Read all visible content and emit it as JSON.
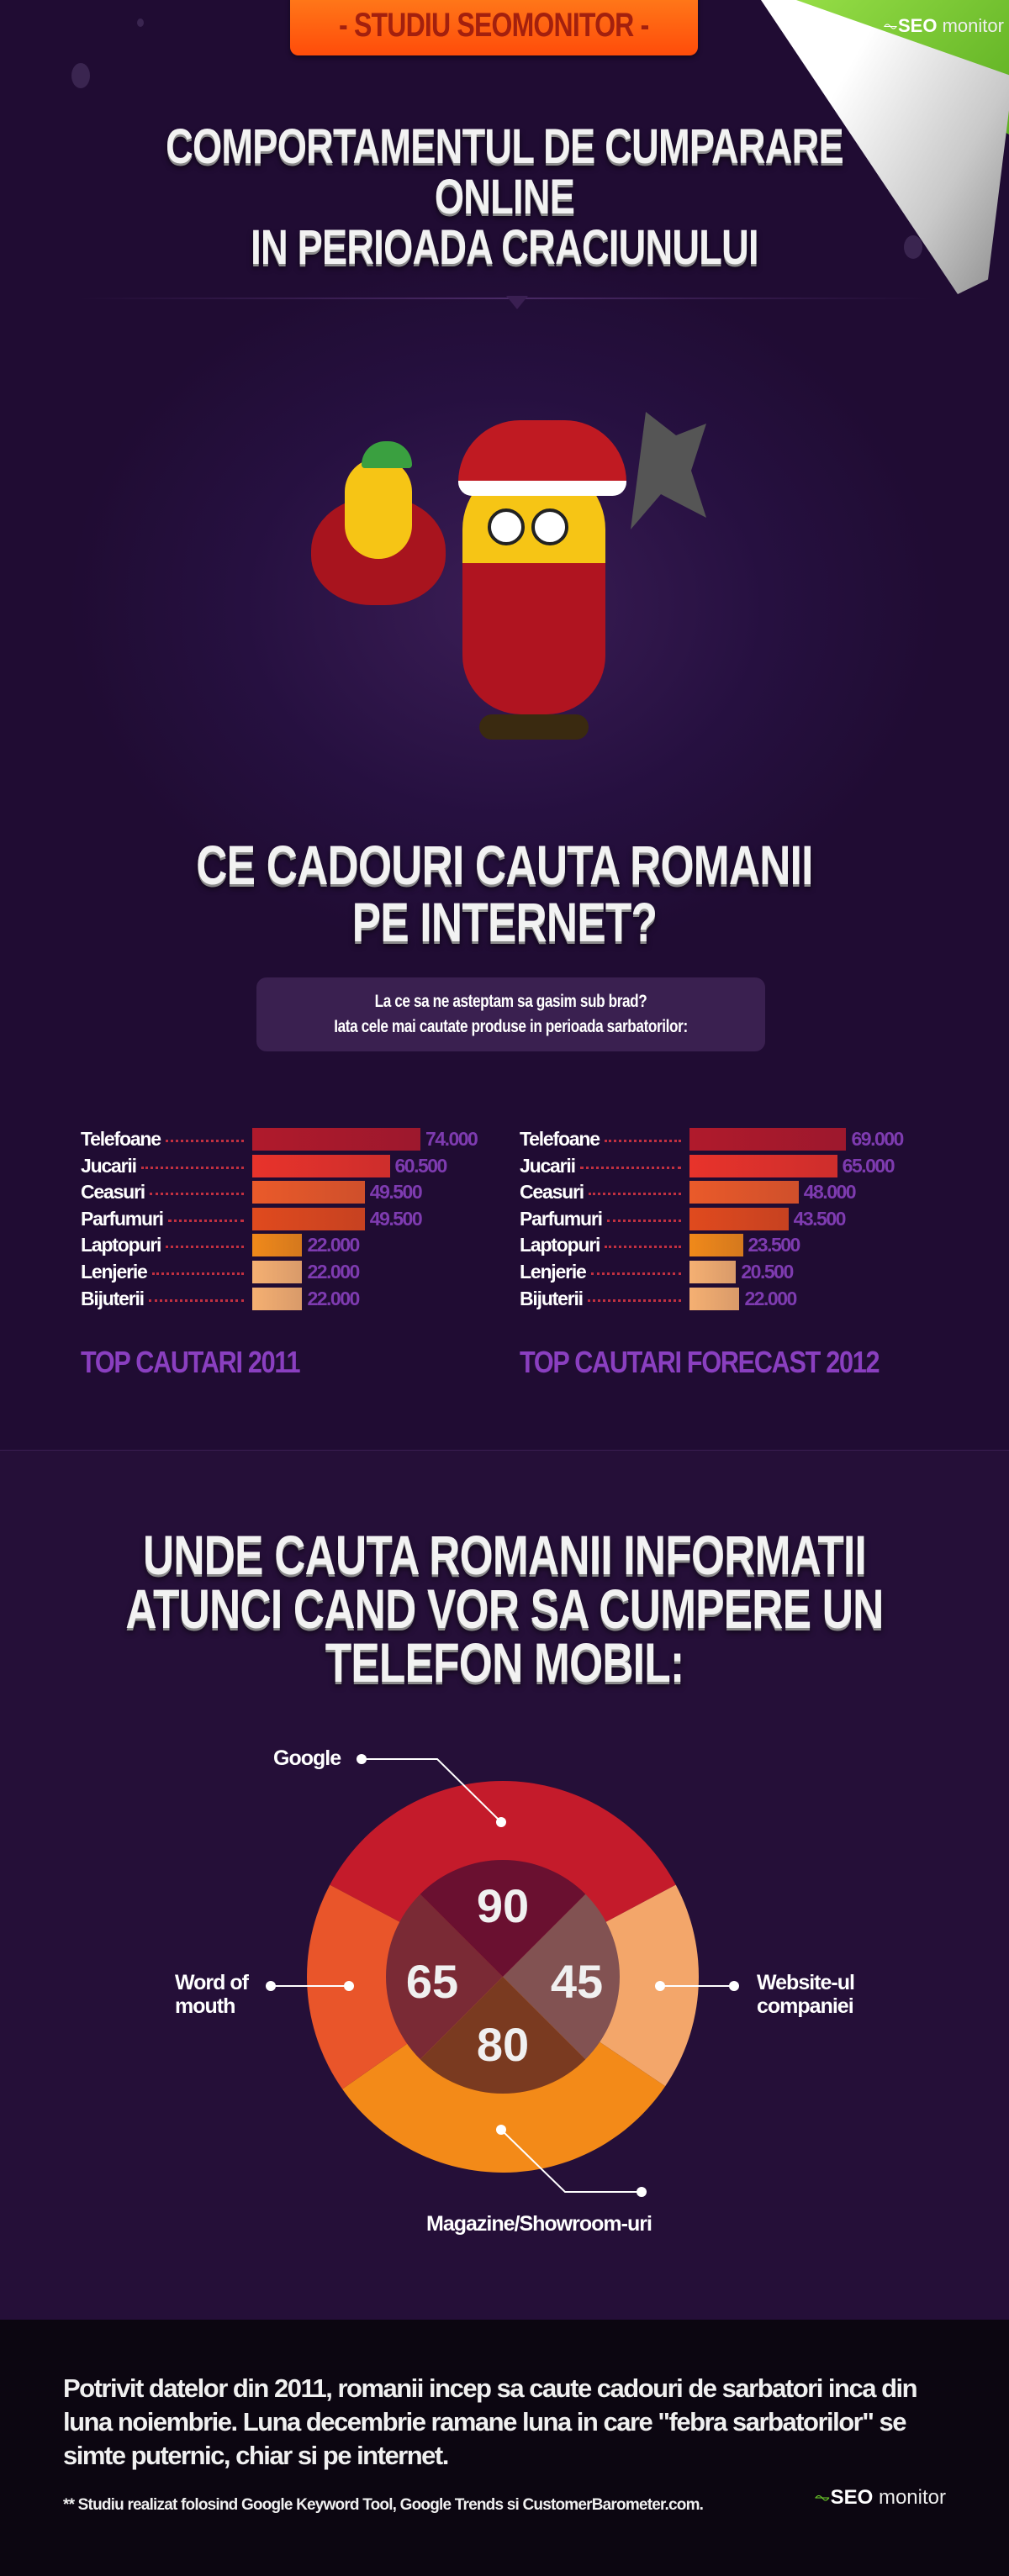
{
  "header": {
    "banner": "- STUDIU SEOMONITOR -",
    "logo_bold": "SEO",
    "logo_light": "monitor",
    "title_line1": "COMPORTAMENTUL DE CUMPARARE ONLINE",
    "title_line2": "IN PERIOADA CRACIUNULUI"
  },
  "gifts": {
    "title_line1": "CE CADOURI CAUTA ROMANII",
    "title_line2": "PE INTERNET?",
    "intro_line1": "La ce sa ne asteptam sa gasim sub brad?",
    "intro_line2": "Iata cele mai cautate produse in perioada sarbatorilor:"
  },
  "phone": {
    "title_line1": "UNDE CAUTA ROMANII INFORMATII",
    "title_line2": "ATUNCI CAND VOR SA CUMPERE UN",
    "title_line3": "TELEFON MOBIL:"
  },
  "chart_data": [
    {
      "type": "bar",
      "orientation": "horizontal",
      "title": "TOP CAUTARI 2011",
      "categories": [
        "Telefoane",
        "Jucarii",
        "Ceasuri",
        "Parfumuri",
        "Laptopuri",
        "Lenjerie",
        "Bijuterii"
      ],
      "values": [
        74000,
        60500,
        49500,
        49500,
        22000,
        22000,
        22000
      ],
      "value_labels": [
        "74.000",
        "60.500",
        "49.500",
        "49.500",
        "22.000",
        "22.000",
        "22.000"
      ],
      "colors": [
        "#b01a2c",
        "#e8332b",
        "#ea5a2a",
        "#e04a1e",
        "#f0891a",
        "#f5b072",
        "#f5b072"
      ]
    },
    {
      "type": "bar",
      "orientation": "horizontal",
      "title": "TOP CAUTARI FORECAST 2012",
      "categories": [
        "Telefoane",
        "Jucarii",
        "Ceasuri",
        "Parfumuri",
        "Laptopuri",
        "Lenjerie",
        "Bijuterii"
      ],
      "values": [
        69000,
        65000,
        48000,
        43500,
        23500,
        20500,
        22000
      ],
      "value_labels": [
        "69.000",
        "65.000",
        "48.000",
        "43.500",
        "23.500",
        "20.500",
        "22.000"
      ],
      "colors": [
        "#b01a2c",
        "#e8332b",
        "#ea5a2a",
        "#e04a1e",
        "#f0891a",
        "#f5b072",
        "#f5b072"
      ]
    },
    {
      "type": "pie",
      "style": "donut",
      "segments": [
        {
          "label": "Google",
          "value": 90,
          "color": "#c41b2b",
          "inner": "#6a1030"
        },
        {
          "label": "Website-ul companiei",
          "value": 45,
          "color": "#f3a66a",
          "inner": "#825252"
        },
        {
          "label": "Magazine/Showroom-uri",
          "value": 80,
          "color": "#f38a18",
          "inner": "#7a3a20"
        },
        {
          "label": "Word of mouth",
          "value": 65,
          "color": "#e9552a",
          "inner": "#7a2a35"
        }
      ]
    }
  ],
  "pie_labels": {
    "google": "Google",
    "word1": "Word of",
    "word2": "mouth",
    "web1": "Website-ul",
    "web2": "companiei",
    "shops": "Magazine/Showroom-uri"
  },
  "footer": {
    "text": "Potrivit datelor din 2011, romanii incep sa caute cadouri de sarbatori inca din luna noiembrie. Luna decembrie ramane luna in care \"febra sarbatorilor\" se simte puternic, chiar si pe internet.",
    "note": "** Studiu realizat folosind Google Keyword Tool, Google Trends si CustomerBarometer.com.",
    "logo_bold": "SEO",
    "logo_light": "monitor"
  }
}
